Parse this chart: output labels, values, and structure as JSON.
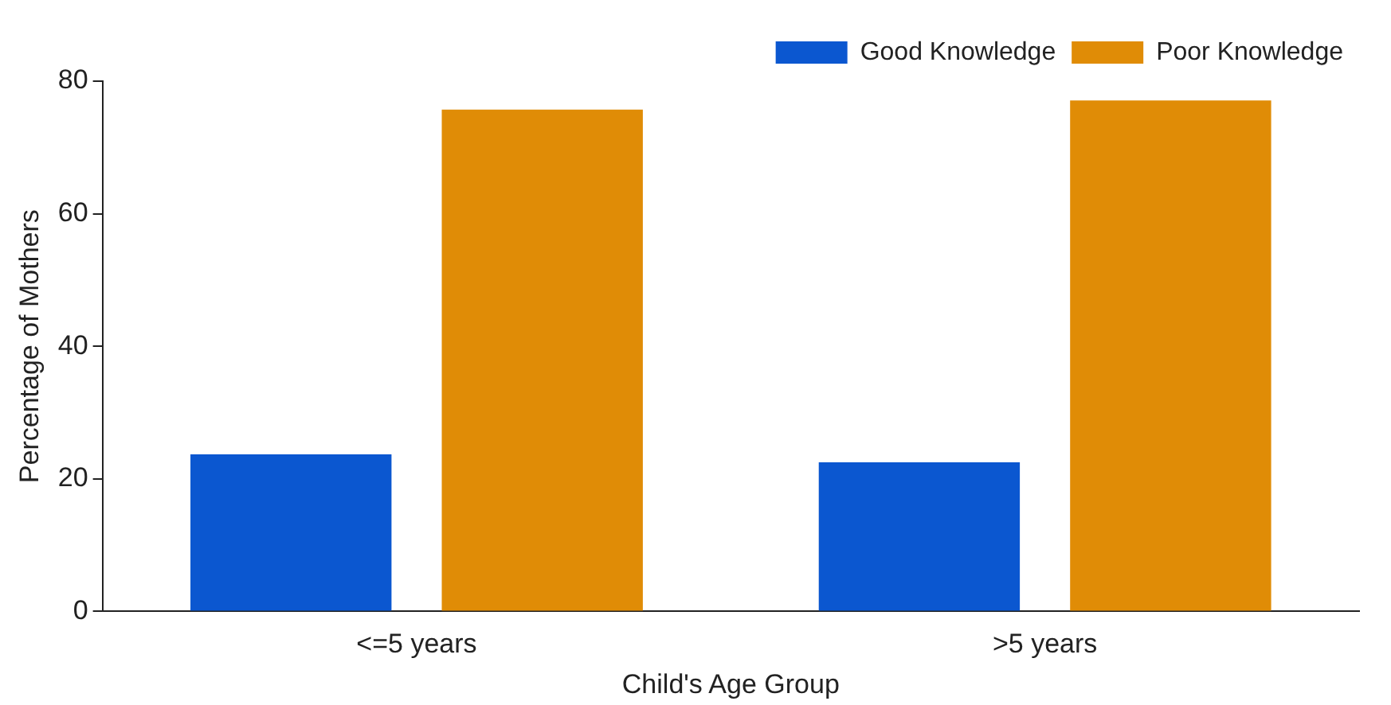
{
  "chart_data": {
    "type": "bar",
    "xlabel": "Child's Age Group",
    "ylabel": "Percentage of Mothers",
    "categories": [
      "<=5 years",
      ">5 years"
    ],
    "series": [
      {
        "name": "Good Knowledge",
        "color": "#0b57d0",
        "values": [
          23.7,
          22.5
        ]
      },
      {
        "name": "Poor Knowledge",
        "color": "#e08c06",
        "values": [
          75.7,
          77.1
        ]
      }
    ],
    "ylim": [
      0,
      80
    ],
    "yticks": [
      0,
      20,
      40,
      60,
      80
    ],
    "grid": false,
    "legend": "top right"
  }
}
